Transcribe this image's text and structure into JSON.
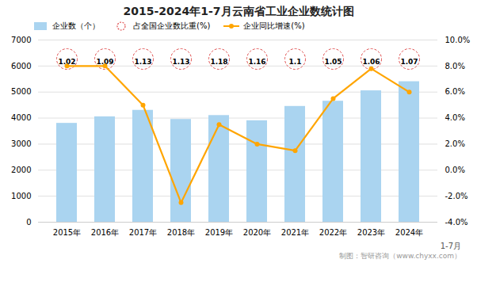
{
  "chart_data": {
    "type": "bar",
    "title": "2015-2024年1-7月云南省工业企业数统计图",
    "categories": [
      "2015年",
      "2016年",
      "2017年",
      "2018年",
      "2019年",
      "2020年",
      "2021年",
      "2022年",
      "2023年",
      "2024年"
    ],
    "series": [
      {
        "name": "企业数（个）",
        "type": "bar",
        "color": "#aad4f0",
        "values": [
          3800,
          4050,
          4300,
          3950,
          4100,
          3900,
          4450,
          4650,
          5050,
          5400
        ]
      },
      {
        "name": "占全国企业数比重(%)",
        "type": "label",
        "color": "#e05050",
        "marker": "circle",
        "line_style": "dashed",
        "data_labels": true,
        "values": [
          1.02,
          1.09,
          1.13,
          1.13,
          1.18,
          1.16,
          1.1,
          1.05,
          1.06,
          1.07
        ],
        "value_labels": [
          "1.02",
          "1.09",
          "1.13",
          "1.13",
          "1.18",
          "1.16",
          "1.1",
          "1.05",
          "1.06",
          "1.07"
        ]
      },
      {
        "name": "企业同比增速(%)",
        "type": "line",
        "axis": "y2",
        "color": "#FFA500",
        "marker": "circle",
        "values": [
          8.0,
          8.0,
          5.0,
          -2.5,
          3.5,
          2.0,
          1.5,
          5.5,
          7.8,
          6.0
        ]
      }
    ],
    "ylim": [
      0,
      7000
    ],
    "yticks": [
      0,
      1000,
      2000,
      3000,
      4000,
      5000,
      6000,
      7000
    ],
    "y2lim": [
      -4.0,
      10.0
    ],
    "y2ticks": [
      {
        "value": -4.0,
        "label": "-4.0%"
      },
      {
        "value": -2.0,
        "label": "-2.0%"
      },
      {
        "value": 0.0,
        "label": "0.0%"
      },
      {
        "value": 2.0,
        "label": "2.0%"
      },
      {
        "value": 4.0,
        "label": "4.0%"
      },
      {
        "value": 6.0,
        "label": "6.0%"
      },
      {
        "value": 8.0,
        "label": "8.0%"
      },
      {
        "value": 10.0,
        "label": "10.0%"
      }
    ],
    "grid": true,
    "legend": "top",
    "annotations": [
      "1-7月",
      "制图：智研咨询（www.chyxx.com）"
    ]
  }
}
